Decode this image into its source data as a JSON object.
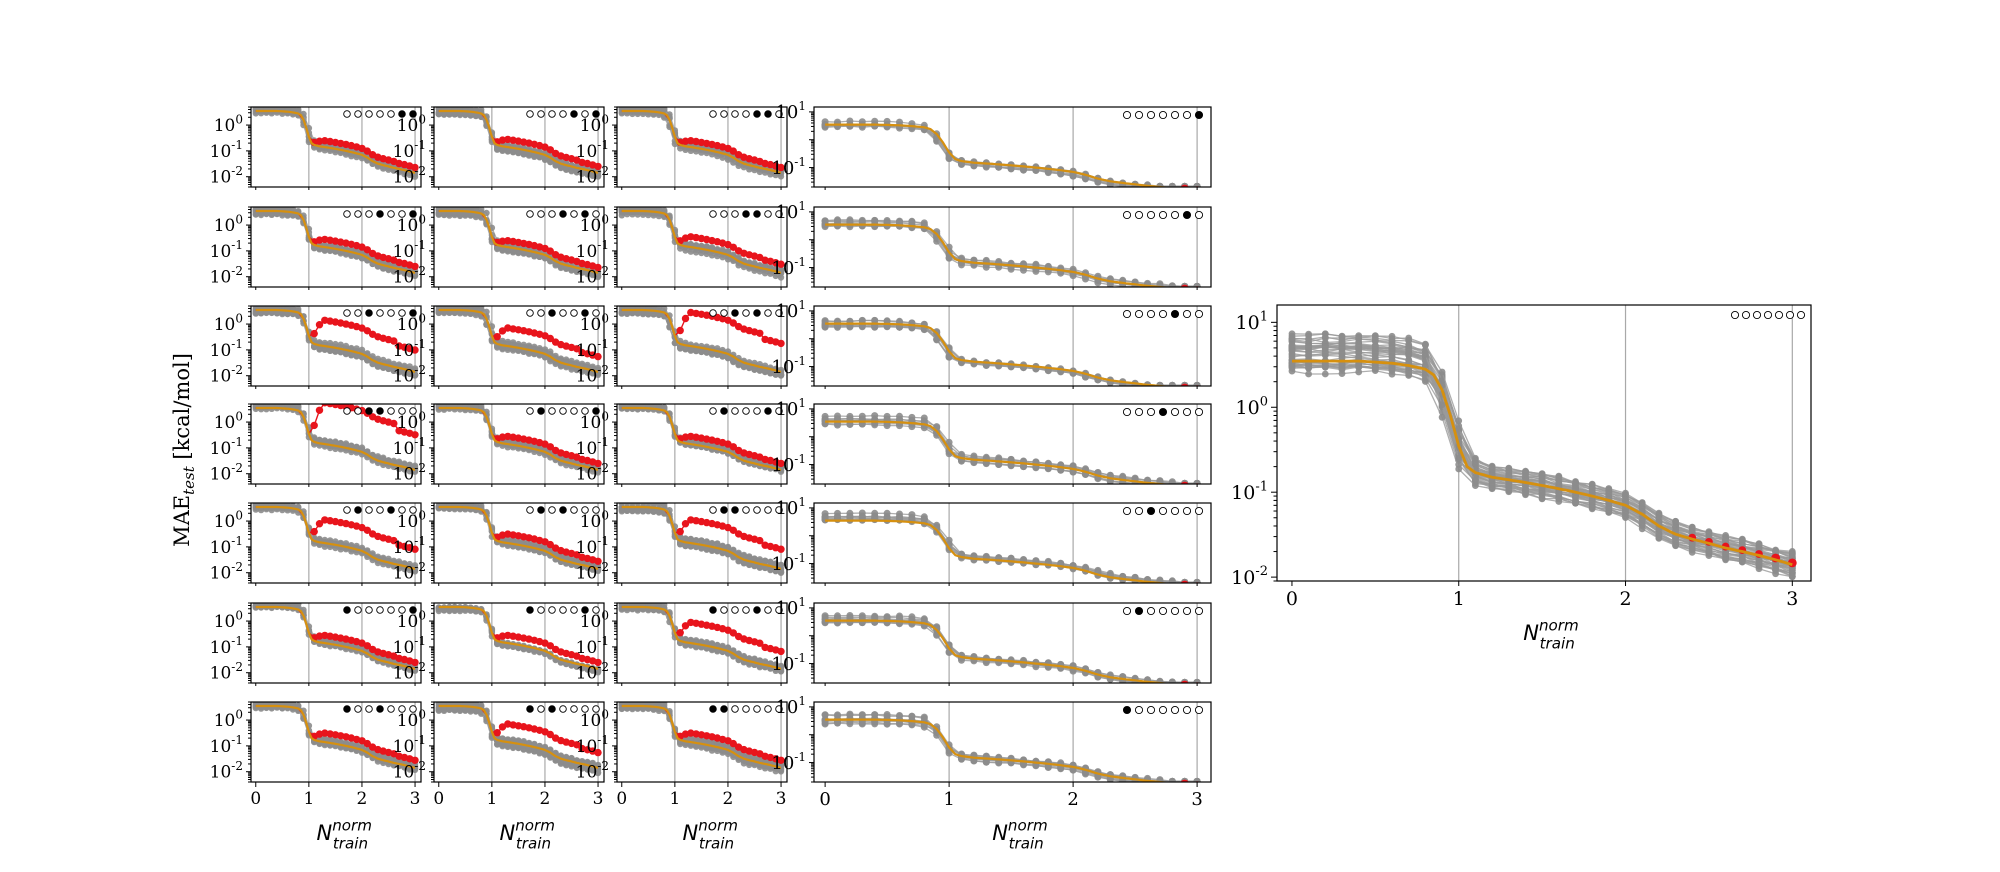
{
  "figure": {
    "ylabel_main": "MAE",
    "ylabel_sub": "test",
    "ylabel_unit": " [kcal/mol]",
    "xlabel_main": "N",
    "xlabel_sup": "norm",
    "xlabel_sub": "train"
  },
  "colors": {
    "gray_lines": "#9a9a9a",
    "gray_markers": "#8c8c8c",
    "red": "#e8141c",
    "orange": "#d6900f",
    "vline": "#a9a9a9",
    "axis": "#000000"
  },
  "chart_data": {
    "type": "line",
    "x_range": [
      0,
      3
    ],
    "x_ticks": [
      0,
      1,
      2,
      3
    ],
    "x_tick_labels": [
      "0",
      "1",
      "2",
      "3"
    ],
    "vertical_lines_at": [
      1,
      2,
      3
    ],
    "y_scale": "log",
    "small_grid": {
      "rows": 7,
      "cols": 3,
      "ylim": [
        0.004,
        5
      ],
      "y_ticks": [
        1,
        0.1,
        0.01
      ],
      "y_tick_labels": [
        [
          "10",
          "0"
        ],
        [
          "10",
          "-1"
        ],
        [
          "10",
          "-2"
        ]
      ],
      "panels": [
        {
          "row": 0,
          "col": 0,
          "mask": [
            0,
            0,
            0,
            0,
            0,
            1,
            1
          ],
          "diverge": 0.25
        },
        {
          "row": 0,
          "col": 1,
          "mask": [
            0,
            0,
            0,
            0,
            1,
            0,
            1
          ],
          "diverge": 0.3
        },
        {
          "row": 0,
          "col": 2,
          "mask": [
            0,
            0,
            0,
            0,
            1,
            1,
            0
          ],
          "diverge": 0.25
        },
        {
          "row": 1,
          "col": 0,
          "mask": [
            0,
            0,
            0,
            1,
            0,
            0,
            1
          ],
          "diverge": 0.3
        },
        {
          "row": 1,
          "col": 1,
          "mask": [
            0,
            0,
            0,
            1,
            0,
            1,
            0
          ],
          "diverge": 0.25
        },
        {
          "row": 1,
          "col": 2,
          "mask": [
            0,
            0,
            0,
            1,
            1,
            0,
            0
          ],
          "diverge": 0.4
        },
        {
          "row": 2,
          "col": 0,
          "mask": [
            0,
            0,
            1,
            0,
            0,
            0,
            1
          ],
          "diverge": 1.0
        },
        {
          "row": 2,
          "col": 1,
          "mask": [
            0,
            0,
            1,
            0,
            0,
            1,
            0
          ],
          "diverge": 0.7
        },
        {
          "row": 2,
          "col": 2,
          "mask": [
            0,
            0,
            1,
            0,
            1,
            0,
            0
          ],
          "diverge": 1.3
        },
        {
          "row": 3,
          "col": 0,
          "mask": [
            0,
            0,
            1,
            1,
            0,
            0,
            0
          ],
          "diverge": 1.6
        },
        {
          "row": 3,
          "col": 1,
          "mask": [
            0,
            1,
            0,
            0,
            0,
            0,
            1
          ],
          "diverge": 0.3
        },
        {
          "row": 3,
          "col": 2,
          "mask": [
            0,
            1,
            0,
            0,
            0,
            1,
            0
          ],
          "diverge": 0.3
        },
        {
          "row": 4,
          "col": 0,
          "mask": [
            0,
            1,
            0,
            0,
            1,
            0,
            0
          ],
          "diverge": 0.9
        },
        {
          "row": 4,
          "col": 1,
          "mask": [
            0,
            1,
            0,
            1,
            0,
            0,
            0
          ],
          "diverge": 0.35
        },
        {
          "row": 4,
          "col": 2,
          "mask": [
            0,
            1,
            1,
            0,
            0,
            0,
            0
          ],
          "diverge": 0.9
        },
        {
          "row": 5,
          "col": 0,
          "mask": [
            1,
            0,
            0,
            0,
            0,
            0,
            1
          ],
          "diverge": 0.3
        },
        {
          "row": 5,
          "col": 1,
          "mask": [
            1,
            0,
            0,
            0,
            0,
            1,
            0
          ],
          "diverge": 0.3
        },
        {
          "row": 5,
          "col": 2,
          "mask": [
            1,
            0,
            0,
            0,
            1,
            0,
            0
          ],
          "diverge": 0.8
        },
        {
          "row": 6,
          "col": 0,
          "mask": [
            1,
            0,
            0,
            1,
            0,
            0,
            0
          ],
          "diverge": 0.35
        },
        {
          "row": 6,
          "col": 1,
          "mask": [
            1,
            0,
            1,
            0,
            0,
            0,
            0
          ],
          "diverge": 0.7
        },
        {
          "row": 6,
          "col": 2,
          "mask": [
            1,
            1,
            0,
            0,
            0,
            0,
            0
          ],
          "diverge": 0.35
        }
      ]
    },
    "middle_column": {
      "ylim": [
        0.02,
        15
      ],
      "y_ticks": [
        10,
        0.1
      ],
      "y_tick_labels": [
        [
          "10",
          "1"
        ],
        [
          "10",
          "-1"
        ]
      ],
      "panels": [
        {
          "row": 0,
          "mask": [
            0,
            0,
            0,
            0,
            0,
            0,
            1
          ]
        },
        {
          "row": 1,
          "mask": [
            0,
            0,
            0,
            0,
            0,
            1,
            0
          ]
        },
        {
          "row": 2,
          "mask": [
            0,
            0,
            0,
            0,
            1,
            0,
            0
          ]
        },
        {
          "row": 3,
          "mask": [
            0,
            0,
            0,
            1,
            0,
            0,
            0
          ]
        },
        {
          "row": 4,
          "mask": [
            0,
            0,
            1,
            0,
            0,
            0,
            0
          ]
        },
        {
          "row": 5,
          "mask": [
            0,
            1,
            0,
            0,
            0,
            0,
            0
          ]
        },
        {
          "row": 6,
          "mask": [
            1,
            0,
            0,
            0,
            0,
            0,
            0
          ]
        }
      ]
    },
    "large_panel": {
      "ylim": [
        0.009,
        16
      ],
      "y_ticks": [
        10,
        1,
        0.1,
        0.01
      ],
      "y_tick_labels": [
        [
          "10",
          "1"
        ],
        [
          "10",
          "0"
        ],
        [
          "10",
          "-1"
        ],
        [
          "10",
          "-2"
        ]
      ],
      "mask": [
        0,
        0,
        0,
        0,
        0,
        0,
        0
      ]
    },
    "mean_curve": {
      "x": [
        0,
        0.1,
        0.2,
        0.3,
        0.4,
        0.5,
        0.6,
        0.7,
        0.8,
        0.85,
        0.9,
        0.95,
        1.0,
        1.05,
        1.1,
        1.2,
        1.3,
        1.4,
        1.5,
        1.6,
        1.7,
        1.8,
        1.9,
        2.0,
        2.1,
        2.2,
        2.3,
        2.4,
        2.5,
        2.6,
        2.7,
        2.8,
        2.9,
        3.0
      ],
      "y": [
        3.5,
        3.5,
        3.5,
        3.5,
        3.5,
        3.4,
        3.3,
        3.1,
        2.8,
        2.4,
        1.6,
        0.8,
        0.35,
        0.2,
        0.17,
        0.15,
        0.14,
        0.13,
        0.12,
        0.11,
        0.1,
        0.09,
        0.08,
        0.07,
        0.055,
        0.04,
        0.032,
        0.028,
        0.025,
        0.022,
        0.02,
        0.018,
        0.016,
        0.014
      ]
    }
  }
}
